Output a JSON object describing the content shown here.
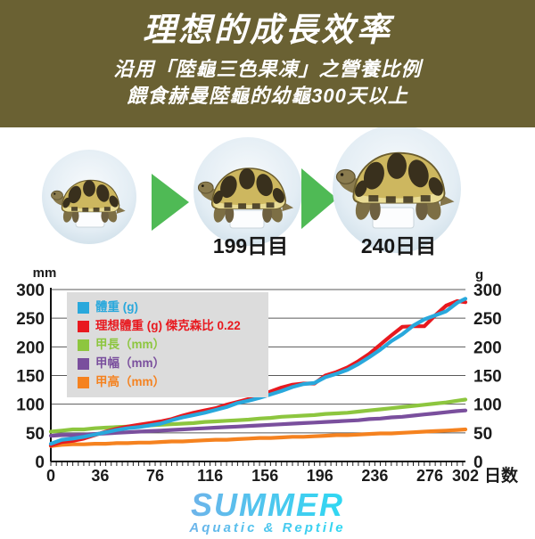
{
  "header": {
    "bg_color": "#6a6133",
    "title": "理想的成長效率",
    "subtitle1": "沿用「陸龜三色果凍」之營養比例",
    "subtitle2": "餵食赫曼陸龜的幼龜300天以上"
  },
  "photos": {
    "arrow_color": "#4fba55",
    "stage_labels": [
      "",
      "199日目",
      "240日目"
    ]
  },
  "chart_data": {
    "type": "line",
    "grid": true,
    "legend_position": "top-left",
    "left_axis_unit": "mm",
    "right_axis_unit": "g",
    "x_axis_label": "日数",
    "xlim": [
      0,
      302
    ],
    "ylim": [
      0,
      300
    ],
    "y_ticks": [
      0,
      50,
      100,
      150,
      200,
      250,
      300
    ],
    "x_tick_labels": [
      0,
      36,
      76,
      116,
      156,
      196,
      236,
      276,
      302
    ],
    "minor_tick_step_days": 4,
    "x": [
      0,
      8,
      16,
      24,
      32,
      40,
      48,
      56,
      64,
      72,
      80,
      88,
      96,
      104,
      112,
      120,
      128,
      136,
      144,
      152,
      160,
      168,
      176,
      184,
      192,
      200,
      208,
      216,
      224,
      232,
      240,
      248,
      256,
      264,
      272,
      280,
      288,
      296,
      302
    ],
    "series": [
      {
        "name": "體重 (g)",
        "color": "#29a8dc",
        "values": [
          31,
          38,
          40,
          43,
          47,
          51,
          55,
          58,
          60,
          63,
          66,
          72,
          77,
          81,
          85,
          90,
          95,
          102,
          106,
          111,
          117,
          123,
          130,
          135,
          137,
          147,
          153,
          160,
          170,
          182,
          195,
          210,
          222,
          237,
          248,
          255,
          262,
          277,
          284
        ]
      },
      {
        "name": "理想體重 (g) 傑克森比 0.22",
        "color": "#e8191f",
        "values": [
          28,
          34,
          36,
          40,
          46,
          52,
          57,
          61,
          64,
          67,
          70,
          74,
          80,
          85,
          89,
          93,
          99,
          104,
          109,
          116,
          122,
          129,
          134,
          136,
          136,
          150,
          156,
          164,
          175,
          188,
          204,
          220,
          235,
          236,
          236,
          255,
          272,
          280,
          278
        ]
      },
      {
        "name": "甲長（mm）",
        "color": "#8dc63f",
        "values": [
          52,
          54,
          56,
          56,
          58,
          59,
          60,
          61,
          62,
          63,
          64,
          65,
          66,
          67,
          69,
          70,
          71,
          72,
          73,
          75,
          76,
          78,
          79,
          80,
          81,
          83,
          84,
          85,
          87,
          89,
          91,
          93,
          95,
          97,
          99,
          101,
          103,
          106,
          108
        ]
      },
      {
        "name": "甲幅（mm）",
        "color": "#7a4f9d",
        "values": [
          45,
          46,
          46,
          47,
          48,
          49,
          50,
          51,
          52,
          53,
          54,
          55,
          56,
          57,
          58,
          59,
          60,
          61,
          62,
          63,
          64,
          65,
          66,
          67,
          68,
          69,
          70,
          71,
          72,
          74,
          75,
          77,
          78,
          80,
          82,
          84,
          86,
          88,
          89
        ]
      },
      {
        "name": "甲高（mm）",
        "color": "#f5821f",
        "values": [
          27,
          29,
          30,
          30,
          31,
          31,
          32,
          32,
          33,
          33,
          34,
          35,
          35,
          36,
          37,
          38,
          38,
          39,
          40,
          41,
          41,
          42,
          43,
          43,
          44,
          45,
          46,
          46,
          47,
          48,
          49,
          49,
          50,
          51,
          52,
          53,
          54,
          55,
          56
        ]
      }
    ]
  },
  "footer": {
    "brand": "SUMMER",
    "tagline": "Aquatic & Reptile",
    "brand_color_start": "#6db4ea",
    "brand_color_end": "#2fd8f2"
  }
}
